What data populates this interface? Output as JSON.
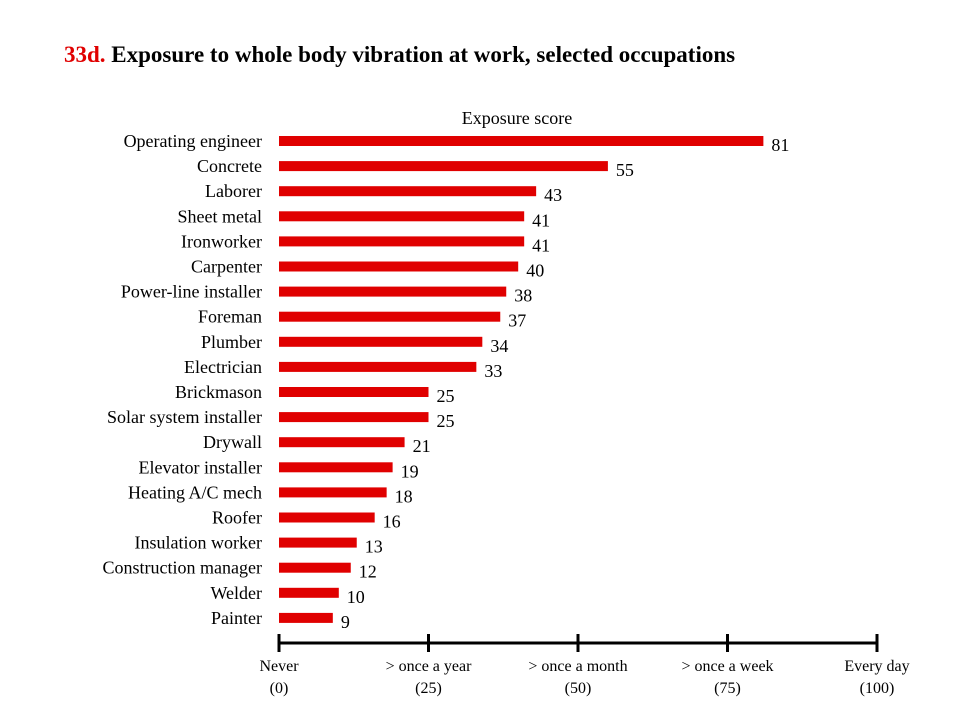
{
  "title_prefix": "33d.",
  "title_text": "Exposure to whole body vibration at work, selected occupations",
  "chart_data": {
    "type": "bar",
    "orientation": "horizontal",
    "title": "33d. Exposure to whole body vibration at work, selected occupations",
    "xlabel": "Exposure score",
    "ylabel": "",
    "xlim": [
      0,
      100
    ],
    "bar_color": "#e00000",
    "categories": [
      "Operating engineer",
      "Concrete",
      "Laborer",
      "Sheet metal",
      "Ironworker",
      "Carpenter",
      "Power-line installer",
      "Foreman",
      "Plumber",
      "Electrician",
      "Brickmason",
      "Solar system installer",
      "Drywall",
      "Elevator installer",
      "Heating A/C mech",
      "Roofer",
      "Insulation worker",
      "Construction manager",
      "Welder",
      "Painter"
    ],
    "values": [
      81,
      55,
      43,
      41,
      41,
      40,
      38,
      37,
      34,
      33,
      25,
      25,
      21,
      19,
      18,
      16,
      13,
      12,
      10,
      9
    ],
    "axis_ticks": [
      {
        "value": 0,
        "line1": "Never",
        "line2": "(0)"
      },
      {
        "value": 25,
        "line1": "> once a year",
        "line2": "(25)"
      },
      {
        "value": 50,
        "line1": "> once a month",
        "line2": "(50)"
      },
      {
        "value": 75,
        "line1": "> once a week",
        "line2": "(75)"
      },
      {
        "value": 100,
        "line1": "Every day",
        "line2": "(100)"
      }
    ]
  }
}
